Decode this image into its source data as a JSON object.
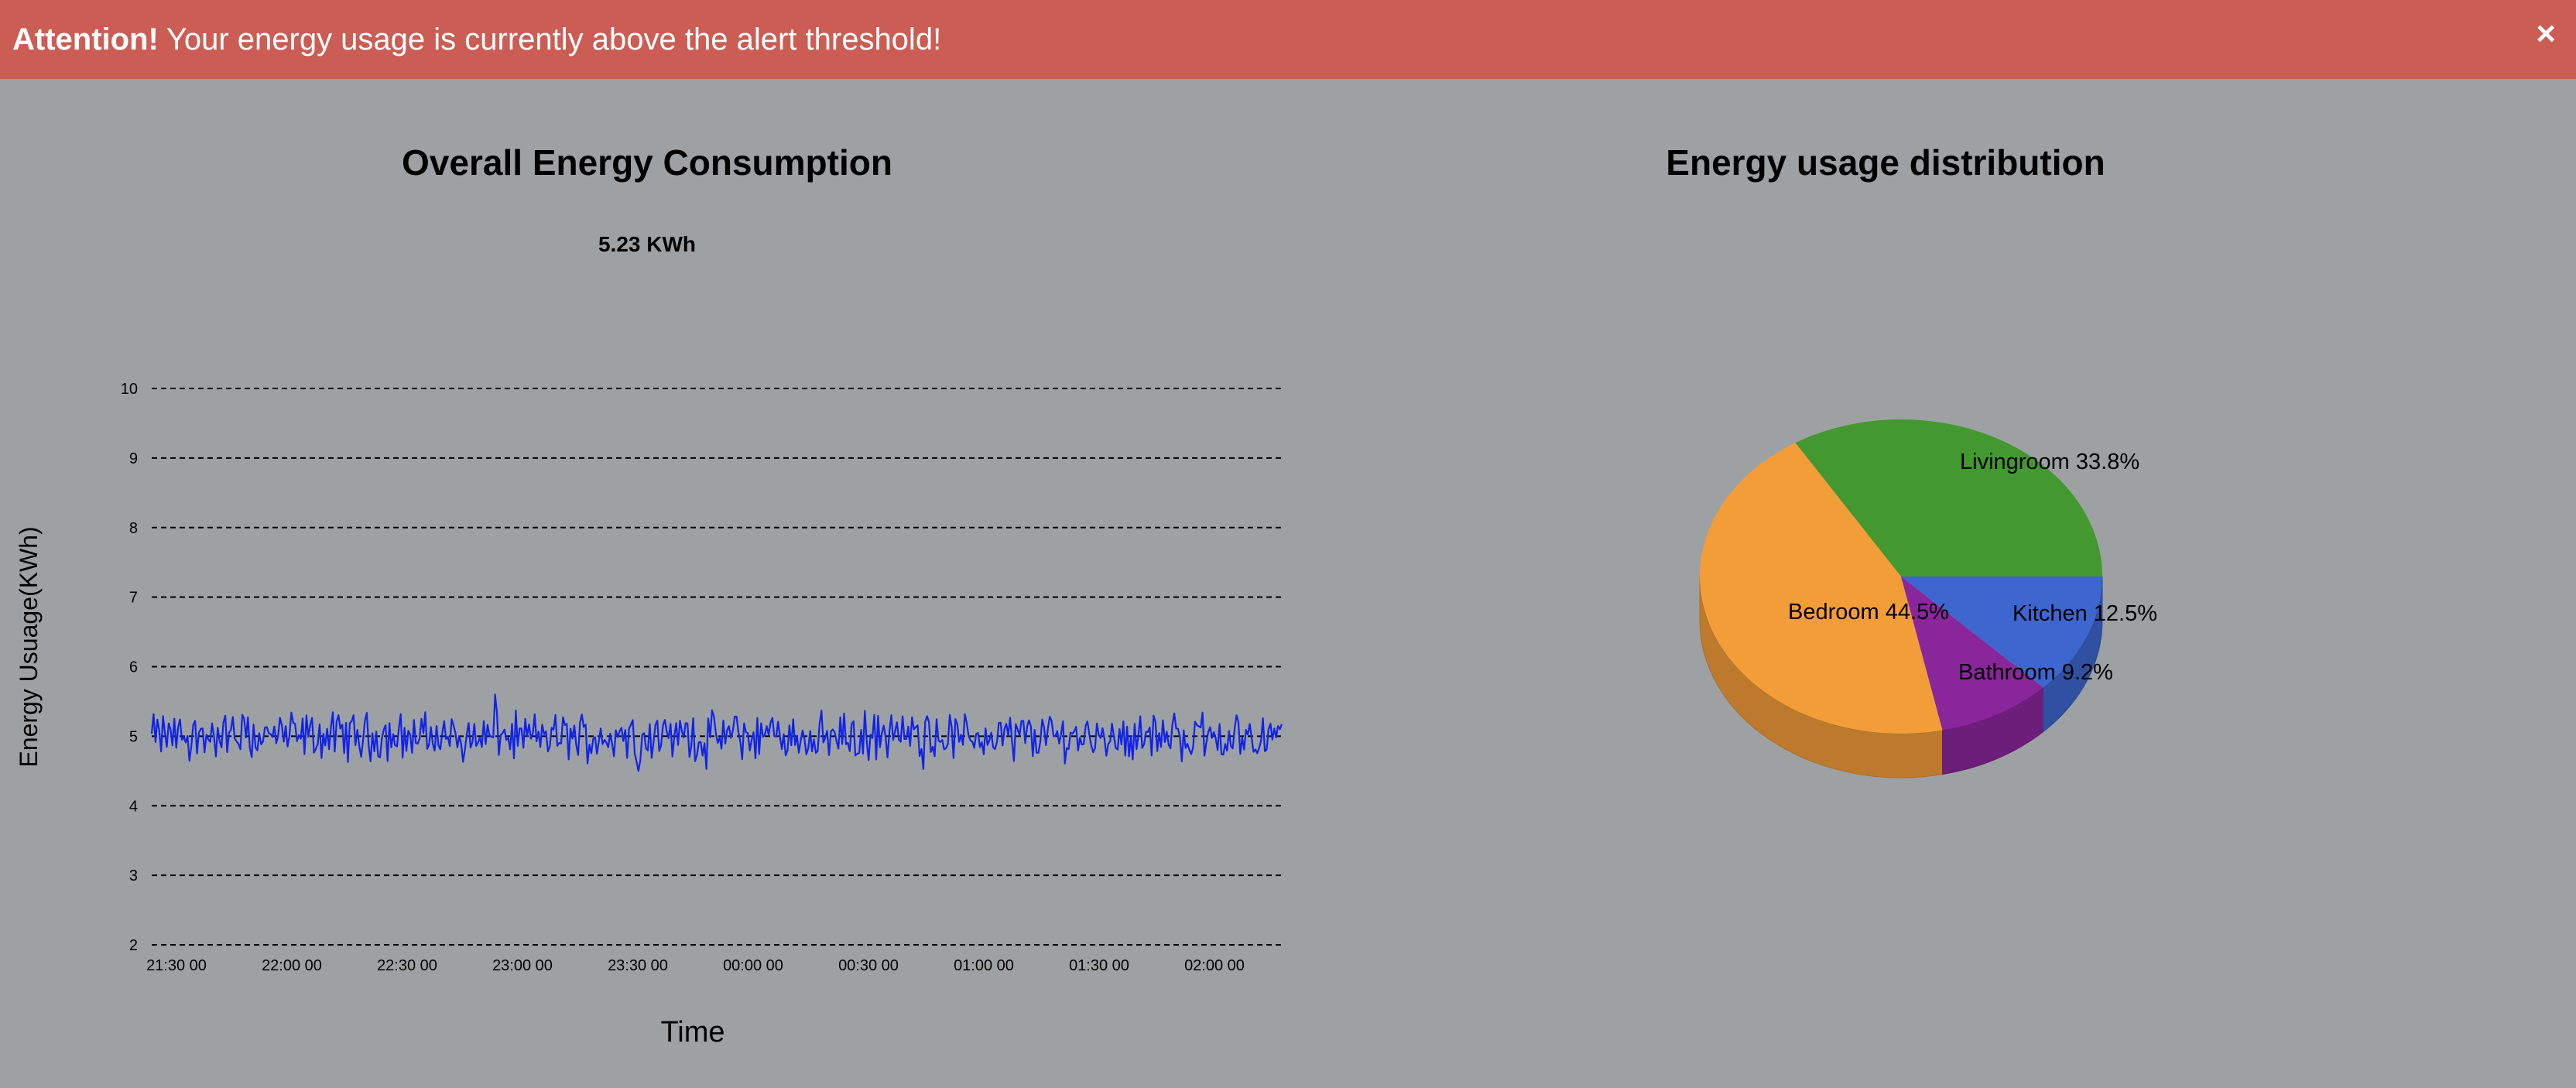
{
  "alert": {
    "strong": "Attention!",
    "message": "Your energy usage is currently above the alert threshold!",
    "close_glyph": "×",
    "color": "#cb5d54"
  },
  "line_panel": {
    "title": "Overall Energy Consumption",
    "current_value": "5.23 KWh"
  },
  "pie_panel": {
    "title": "Energy usage distribution"
  },
  "chart_data": [
    {
      "type": "line",
      "title": "Overall Energy Consumption",
      "subtitle": "5.23 KWh",
      "xlabel": "Time",
      "ylabel": "Energy Usuage(KWh)",
      "ylim": [
        2,
        10
      ],
      "yticks": [
        2,
        3,
        4,
        5,
        6,
        7,
        8,
        9,
        10
      ],
      "xticks": [
        "21:30 00",
        "22:00 00",
        "22:30 00",
        "23:00 00",
        "23:30 00",
        "00:00 00",
        "00:30 00",
        "01:00 00",
        "01:30 00",
        "02:00 00"
      ],
      "x_start": "21:30 00",
      "x_end": "02:10 00",
      "grid": "dashed horizontal",
      "series": [
        {
          "color": "#1024e8",
          "mean": 5.0,
          "min": 4.5,
          "max": 5.6,
          "samples": 600
        }
      ]
    },
    {
      "type": "pie",
      "title": "Energy usage distribution",
      "style": "3d",
      "slices": [
        {
          "label": "Livingroom",
          "value": 33.8,
          "display": "Livingroom 33.8%",
          "color": "#43982f"
        },
        {
          "label": "Bedroom",
          "value": 44.5,
          "display": "Bedroom 44.5%",
          "color": "#f39d39"
        },
        {
          "label": "Bathroom",
          "value": 9.2,
          "display": "Bathroom 9.2%",
          "color": "#8a269c"
        },
        {
          "label": "Kitchen",
          "value": 12.5,
          "display": "Kitchen 12.5%",
          "color": "#3d67cf"
        }
      ]
    }
  ]
}
